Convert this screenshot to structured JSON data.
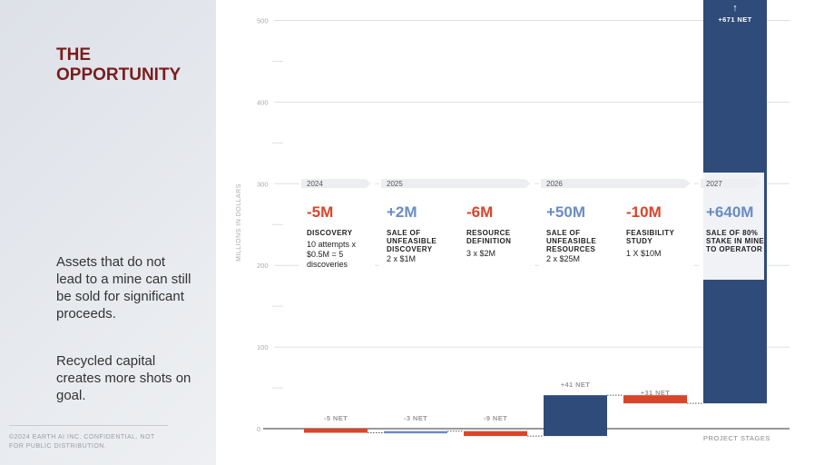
{
  "chart_data": {
    "type": "waterfall",
    "title": "THE OPPORTUNITY",
    "body": [
      "Assets that do not lead to a mine can still be sold for significant proceeds.",
      "Recycled capital creates more shots on goal."
    ],
    "footer": "©2024 EARTH AI INC. CONFIDENTIAL. NOT FOR PUBLIC DISTRIBUTION.",
    "ylabel": "MILLIONS IN DOLLARS",
    "xlabel": "PROJECT STAGES",
    "years": [
      "2024",
      "2025",
      null,
      "2026",
      null,
      "2027"
    ],
    "categories": [
      "DISCOVERY",
      "SALE OF UNFEASIBLE DISCOVERY",
      "RESOURCE DEFINITION",
      "SALE OF UNFEASIBLE RESOURCES",
      "FEASIBILITY STUDY",
      "SALE OF 80% STAKE IN MINE TO OPERATOR"
    ],
    "details": [
      "10 attempts x $0.5M = 5 discoveries",
      "2 x $1M",
      "3 x $2M",
      "2 x $25M",
      "1 X $10M",
      null
    ],
    "values": [
      -5,
      2,
      -6,
      50,
      -10,
      640
    ],
    "value_labels": [
      "-5M",
      "+2M",
      "-6M",
      "+50M",
      "-10M",
      "+640M"
    ],
    "net_labels": [
      "-5 NET",
      "-3 NET",
      "-9 NET",
      "+41 NET",
      "+31 NET",
      "+671 NET"
    ],
    "colors": [
      "#d9452b",
      "#6b8cc4",
      "#d9452b",
      "#2f4b7a",
      "#d9452b",
      "#2f4b7a"
    ],
    "ylim": [
      0,
      525
    ],
    "yticks": [
      0,
      100,
      200,
      300,
      400,
      500
    ],
    "minor_yticks": [
      50,
      150,
      250,
      350,
      450
    ],
    "grid": true
  }
}
